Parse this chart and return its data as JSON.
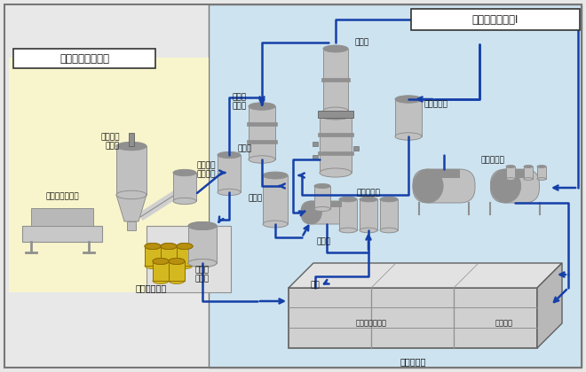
{
  "bg_color": "#e8e8e8",
  "light_blue_bg": "#cde3f0",
  "light_yellow_bg": "#f8f5cc",
  "border_color": "#777777",
  "blue_line": "#1540a8",
  "el": "#c0c0c0",
  "em": "#909090",
  "ed": "#606060",
  "drum_y": "#d4b820",
  "drum_yt": "#b89010",
  "labels": {
    "cement_fixation": "セメント固化装置",
    "evap_treatment": "蒸発処理装置・Ⅰ",
    "cement_bag": "セメント開袋機",
    "cement_hopper": "セメント\nホッパ",
    "cement_conveyor": "セメント\nコンベア",
    "measuring_tank": "計量槽",
    "mist_separator": "ミスト\n分離器",
    "evaporator": "蒸発缶",
    "waste_feed": "廃液供給槽",
    "filling_tower": "充填塔",
    "condenser": "凝縮器",
    "mixer": "混練用\nミキサ",
    "conc_tank": "濃縮液貯槽",
    "conc_storage": "凝縮液貯槽",
    "storage_facility": "保管廃薬施設",
    "drainage": "排水",
    "treated_tank": "処理済廃液貯槽",
    "waste_tank": "廃液貯槽",
    "liquid_waste": "液体廃棄物"
  }
}
